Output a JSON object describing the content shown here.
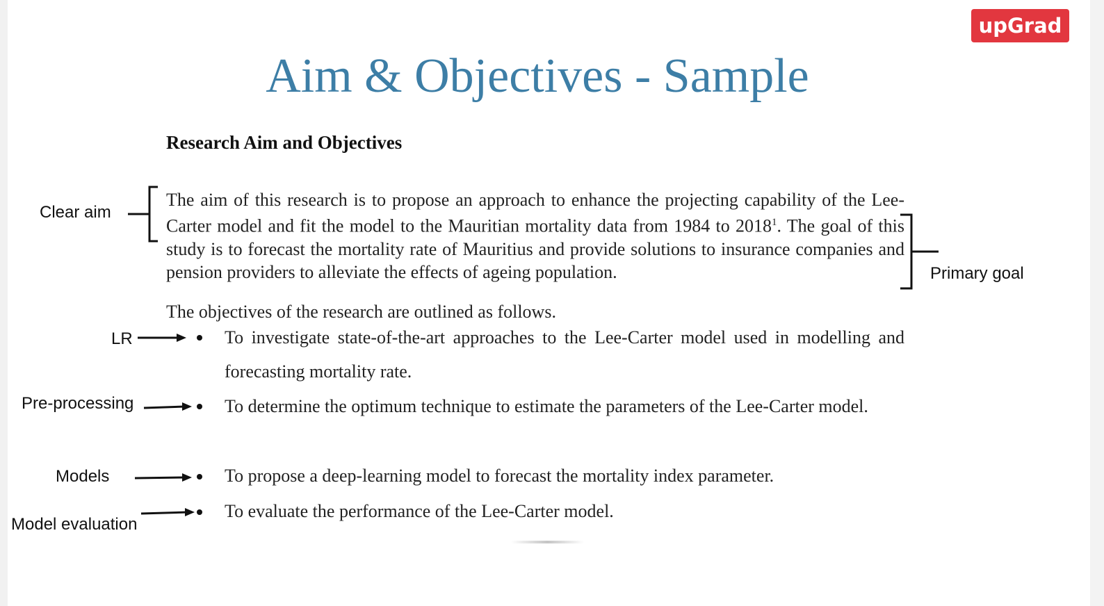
{
  "logo": {
    "text": "upGrad"
  },
  "slide": {
    "title": "Aim & Objectives - Sample",
    "subheading": "Research Aim and Objectives",
    "aim_paragraph": {
      "before_sup": "The aim of this research is to propose an approach to enhance the projecting capability of the Lee-Carter model and fit the model to the Mauritian mortality data from 1984 to 2018",
      "sup": "1",
      "after_sup": ". The goal of this study is to forecast the mortality rate of Mauritius and provide solutions to insurance companies and pension providers to alleviate the effects of ageing population."
    },
    "objectives_intro": "The objectives of the research are outlined as follows.",
    "objectives": [
      "To investigate state-of-the-art approaches to the Lee-Carter model used in modelling and forecasting mortality rate.",
      "To determine the optimum technique to estimate the parameters of the Lee-Carter model.",
      "To propose a deep-learning model to forecast the mortality index parameter.",
      "To evaluate the performance of the Lee-Carter model."
    ]
  },
  "annotations": {
    "clear_aim": "Clear aim",
    "primary_goal": "Primary goal",
    "lr": "LR",
    "preprocessing": "Pre-processing",
    "models": "Models",
    "model_evaluation": "Model evaluation"
  },
  "colors": {
    "title": "#3d7ea6",
    "logo_bg": "#e2373f",
    "text": "#222222"
  }
}
